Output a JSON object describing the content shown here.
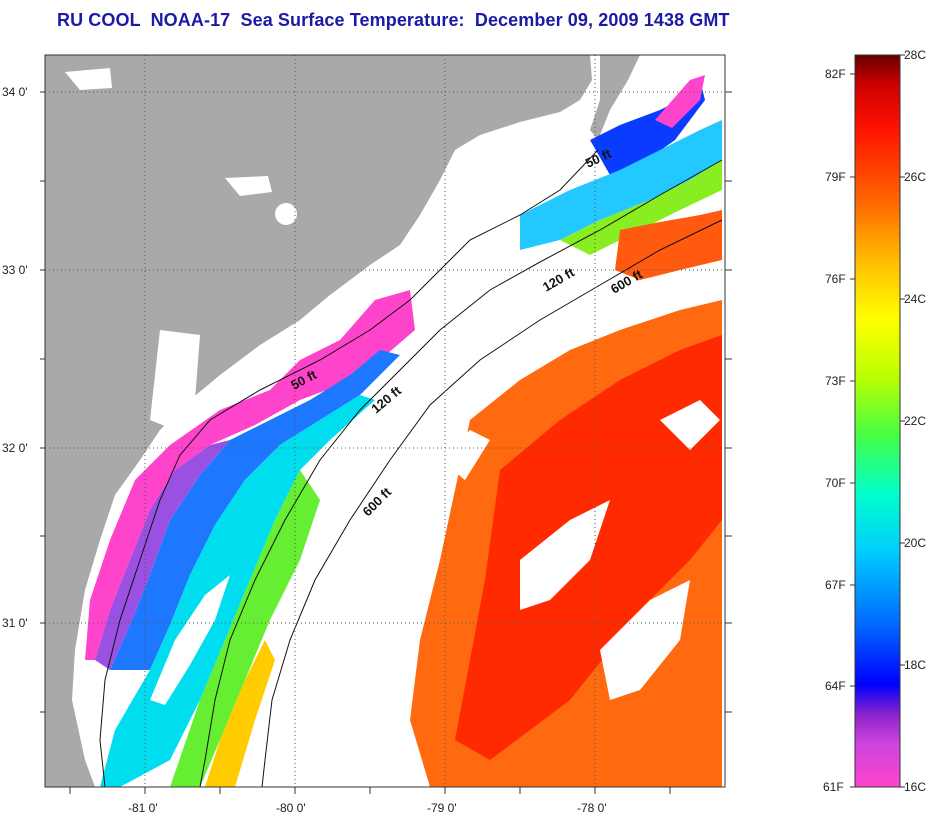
{
  "title": "RU COOL  NOAA-17  Sea Surface Temperature:  December 09, 2009 1438 GMT",
  "map": {
    "lat_ticks": [
      "34 0'",
      "33 0'",
      "32 0'",
      "31 0'"
    ],
    "lon_ticks": [
      "-81 0'",
      "-80 0'",
      "-79 0'",
      "-78 0'"
    ],
    "contour_labels": [
      {
        "id": "contour-50ft-north",
        "text": "50 ft"
      },
      {
        "id": "contour-120ft-north",
        "text": "120 ft"
      },
      {
        "id": "contour-600ft-north",
        "text": "600 ft"
      },
      {
        "id": "contour-50ft-mid",
        "text": "50 ft"
      },
      {
        "id": "contour-120ft-mid",
        "text": "120 ft"
      },
      {
        "id": "contour-600ft-south",
        "text": "600 ft"
      }
    ],
    "colors": {
      "land": "#a9a9a9",
      "cloud": "#ffffff",
      "gridline": "#555555"
    }
  },
  "colorbar": {
    "celsius_labels": [
      "28C",
      "26C",
      "24C",
      "22C",
      "20C",
      "18C",
      "16C"
    ],
    "fahrenheit_labels": [
      "82F",
      "79F",
      "76F",
      "73F",
      "70F",
      "67F",
      "64F",
      "61F"
    ]
  }
}
